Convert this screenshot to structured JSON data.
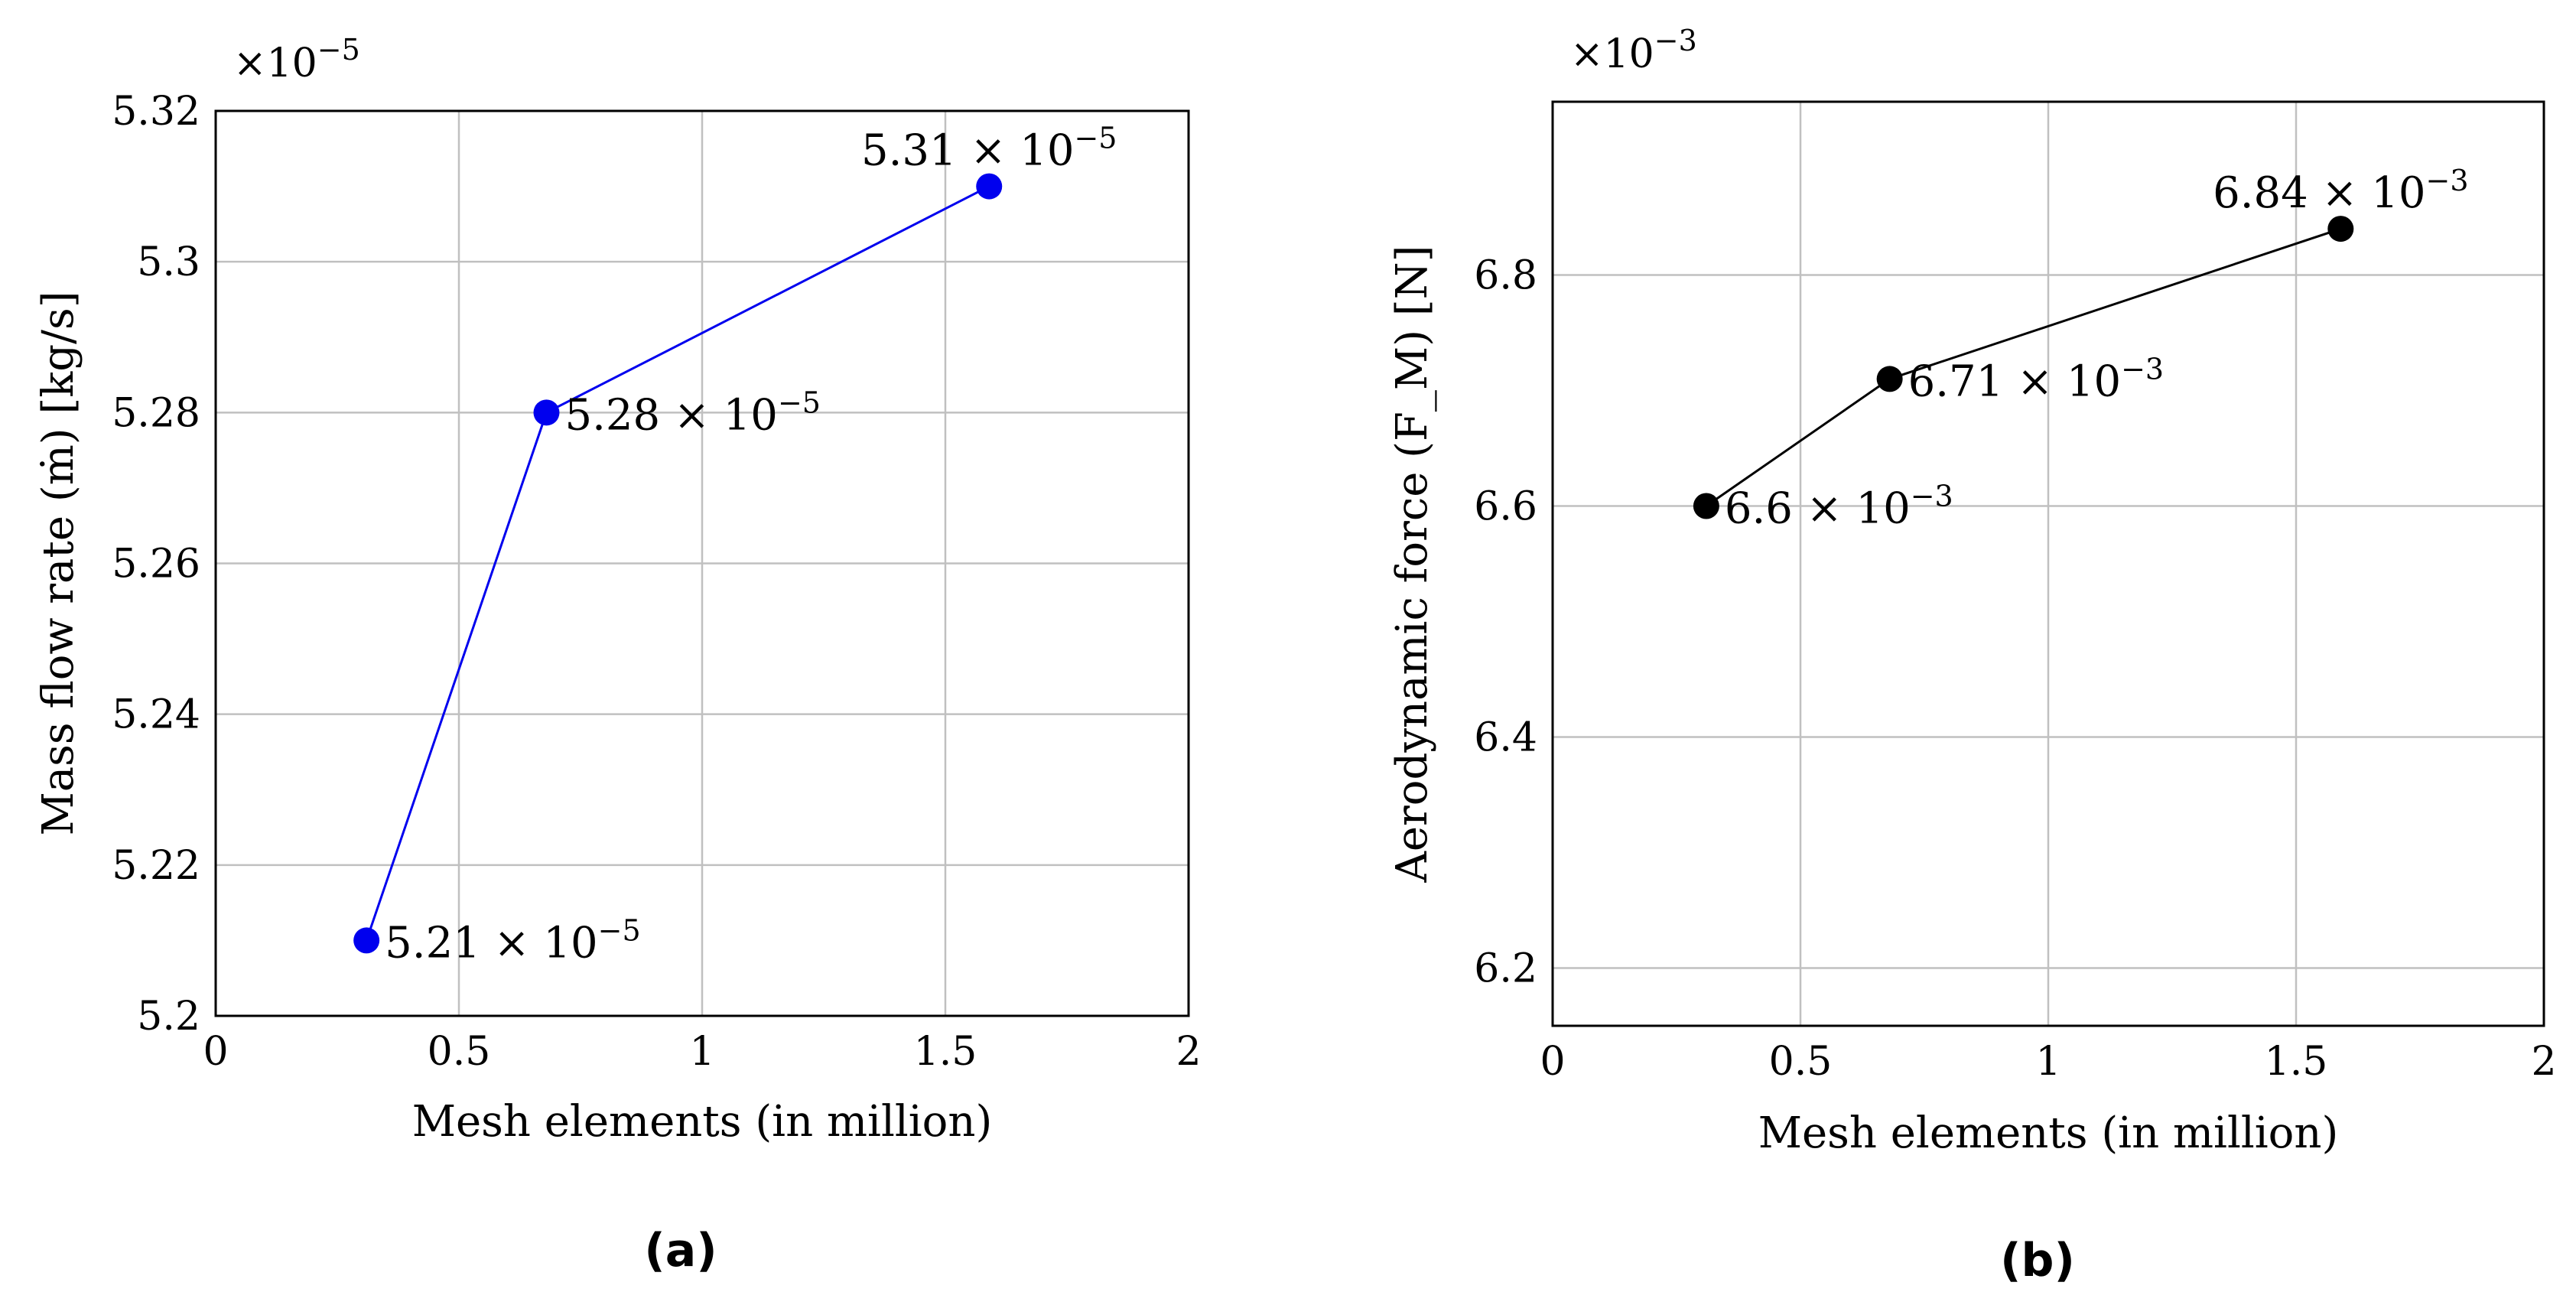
{
  "chart_data": [
    {
      "type": "line",
      "caption": "(a)",
      "xlabel": "Mesh elements (in million)",
      "ylabel": "Mass flow rate (ṁ) [kg/s]",
      "scale_label": "×10",
      "scale_exp": "−5",
      "xlim": [
        0,
        2
      ],
      "ylim": [
        5.2,
        5.32
      ],
      "xticks": [
        0,
        0.5,
        1,
        1.5,
        2
      ],
      "xtick_labels": [
        "0",
        "0.5",
        "1",
        "1.5",
        "2"
      ],
      "yticks": [
        5.2,
        5.22,
        5.24,
        5.26,
        5.28,
        5.3,
        5.32
      ],
      "ytick_labels": [
        "5.2",
        "5.22",
        "5.24",
        "5.26",
        "5.28",
        "5.3",
        "5.32"
      ],
      "color": "#0000ee",
      "series": [
        {
          "name": "mass flow rate",
          "x": [
            0.31,
            0.68,
            1.59
          ],
          "y": [
            5.21,
            5.28,
            5.31
          ],
          "labels": [
            {
              "base": "5.21 × 10",
              "exp": "−5",
              "pos": "right"
            },
            {
              "base": "5.28 × 10",
              "exp": "−5",
              "pos": "right"
            },
            {
              "base": "5.31 × 10",
              "exp": "−5",
              "pos": "above"
            }
          ]
        }
      ]
    },
    {
      "type": "line",
      "caption": "(b)",
      "xlabel": "Mesh elements (in million)",
      "ylabel": "Aerodynamic force (F_M) [N]",
      "scale_label": "×10",
      "scale_exp": "−3",
      "xlim": [
        0,
        2
      ],
      "ylim": [
        6.15,
        6.95
      ],
      "xticks": [
        0,
        0.5,
        1,
        1.5,
        2
      ],
      "xtick_labels": [
        "0",
        "0.5",
        "1",
        "1.5",
        "2"
      ],
      "yticks": [
        6.2,
        6.4,
        6.6,
        6.8
      ],
      "ytick_labels": [
        "6.2",
        "6.4",
        "6.6",
        "6.8"
      ],
      "color": "#000000",
      "series": [
        {
          "name": "aerodynamic force",
          "x": [
            0.31,
            0.68,
            1.59
          ],
          "y": [
            6.6,
            6.71,
            6.84
          ],
          "labels": [
            {
              "base": "6.6 × 10",
              "exp": "−3",
              "pos": "right"
            },
            {
              "base": "6.71 × 10",
              "exp": "−3",
              "pos": "right"
            },
            {
              "base": "6.84 × 10",
              "exp": "−3",
              "pos": "above"
            }
          ]
        }
      ]
    }
  ]
}
